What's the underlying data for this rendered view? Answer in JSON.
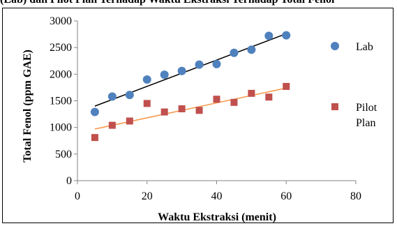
{
  "caption_fragment": "(Lab) dan Pilot Plan Terhadap Waktu Ekstraksi Terhadap Total Fenol",
  "chart_data": {
    "type": "scatter",
    "title": "",
    "xlabel": "Waktu Ekstraksi (menit)",
    "ylabel": "Total Fenol (ppm GAE)",
    "xlim": [
      0,
      80
    ],
    "ylim": [
      0,
      3000
    ],
    "x_ticks": [
      "0",
      "20",
      "40",
      "60",
      "80"
    ],
    "y_ticks": [
      "0",
      "500",
      "1000",
      "1500",
      "2000",
      "2500",
      "3000"
    ],
    "grid": false,
    "legend_position": "right",
    "series": [
      {
        "name": "Lab",
        "marker": "circle",
        "color": "#4f81bd",
        "trendline_color": "#000000",
        "x": [
          5,
          10,
          15,
          20,
          25,
          30,
          35,
          40,
          45,
          50,
          55,
          60
        ],
        "y": [
          1290,
          1580,
          1610,
          1900,
          1990,
          2060,
          2180,
          2190,
          2400,
          2460,
          2720,
          2730
        ],
        "trendline": {
          "x": [
            5,
            60
          ],
          "y": [
            1400,
            2760
          ]
        }
      },
      {
        "name": "Pilot Plan",
        "legend_lines": [
          "Pilot",
          "Plan"
        ],
        "marker": "square",
        "color": "#c0504d",
        "trendline_color": "#f79646",
        "x": [
          5,
          10,
          15,
          20,
          25,
          30,
          35,
          40,
          45,
          50,
          55,
          60
        ],
        "y": [
          810,
          1040,
          1120,
          1450,
          1290,
          1350,
          1320,
          1530,
          1470,
          1640,
          1570,
          1770
        ],
        "trendline": {
          "x": [
            5,
            60
          ],
          "y": [
            970,
            1740
          ]
        }
      }
    ]
  }
}
